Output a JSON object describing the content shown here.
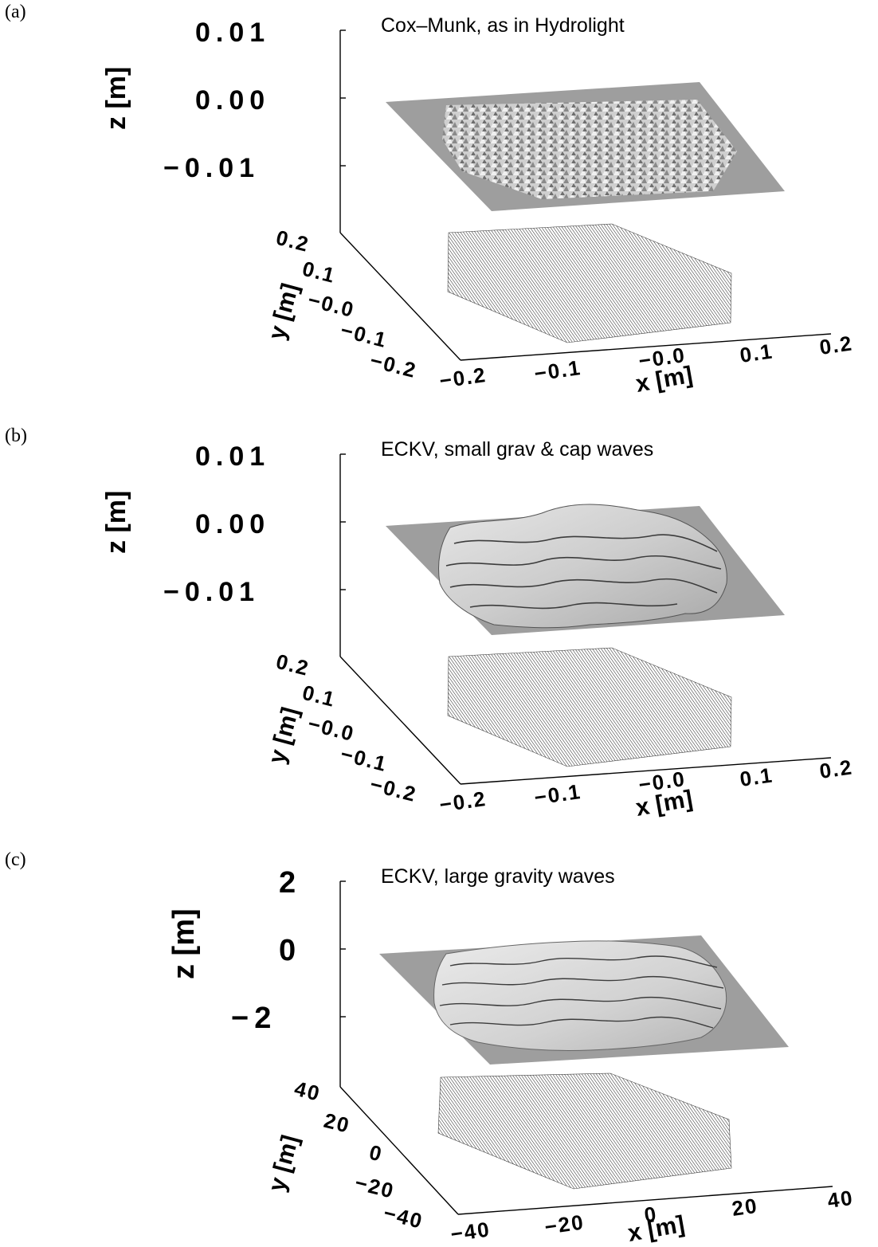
{
  "panels": [
    {
      "label": "(a)",
      "title": "Cox–Munk, as in Hydrolight",
      "z_label": "z [m]",
      "y_label": "y [m]",
      "x_label": "x [m]",
      "z_ticks": [
        "0.01",
        "0.00",
        "−0.01"
      ],
      "y_ticks": [
        "0.2",
        "0.1",
        "−0.0",
        "−0.1",
        "−0.2"
      ],
      "x_ticks": [
        "−0.2",
        "−0.1",
        "−0.0",
        "0.1",
        "0.2"
      ],
      "surface": "small-facet-roughness"
    },
    {
      "label": "(b)",
      "title": "ECKV, small grav & cap waves",
      "z_label": "z [m]",
      "y_label": "y [m]",
      "x_label": "x [m]",
      "z_ticks": [
        "0.01",
        "0.00",
        "−0.01"
      ],
      "y_ticks": [
        "0.2",
        "0.1",
        "−0.0",
        "−0.1",
        "−0.2"
      ],
      "x_ticks": [
        "−0.2",
        "−0.1",
        "−0.0",
        "0.1",
        "0.2"
      ],
      "surface": "capillary-gravity-waves"
    },
    {
      "label": "(c)",
      "title": "ECKV, large gravity waves",
      "z_label": "z [m]",
      "y_label": "y [m]",
      "x_label": "x [m]",
      "z_ticks": [
        "2",
        "0",
        "−2"
      ],
      "y_ticks": [
        "40",
        "20",
        "0",
        "−20",
        "−40"
      ],
      "x_ticks": [
        "−40",
        "−20",
        "0",
        "20",
        "40"
      ],
      "surface": "gravity-waves"
    }
  ],
  "colors": {
    "plane": "#9e9e9e",
    "surface_light": "#e8e8e8",
    "surface_dark": "#4a4a4a",
    "grid": "#222222"
  }
}
